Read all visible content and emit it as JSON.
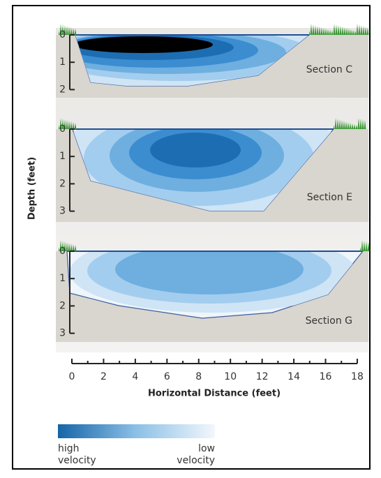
{
  "y_axis_label": "Depth (feet)",
  "sections": [
    {
      "name": "Section C",
      "depth_ticks": [
        "0",
        "1",
        "2"
      ]
    },
    {
      "name": "Section E",
      "depth_ticks": [
        "0",
        "1",
        "2",
        "3"
      ]
    },
    {
      "name": "Section G",
      "depth_ticks": [
        "0",
        "1",
        "2",
        "3"
      ]
    }
  ],
  "x_axis": {
    "label": "Horizontal Distance (feet)",
    "ticks": [
      "0",
      "2",
      "4",
      "6",
      "8",
      "10",
      "12",
      "14",
      "16",
      "18"
    ]
  },
  "legend": {
    "high": [
      "high",
      "velocity"
    ],
    "low": [
      "low",
      "velocity"
    ]
  }
}
